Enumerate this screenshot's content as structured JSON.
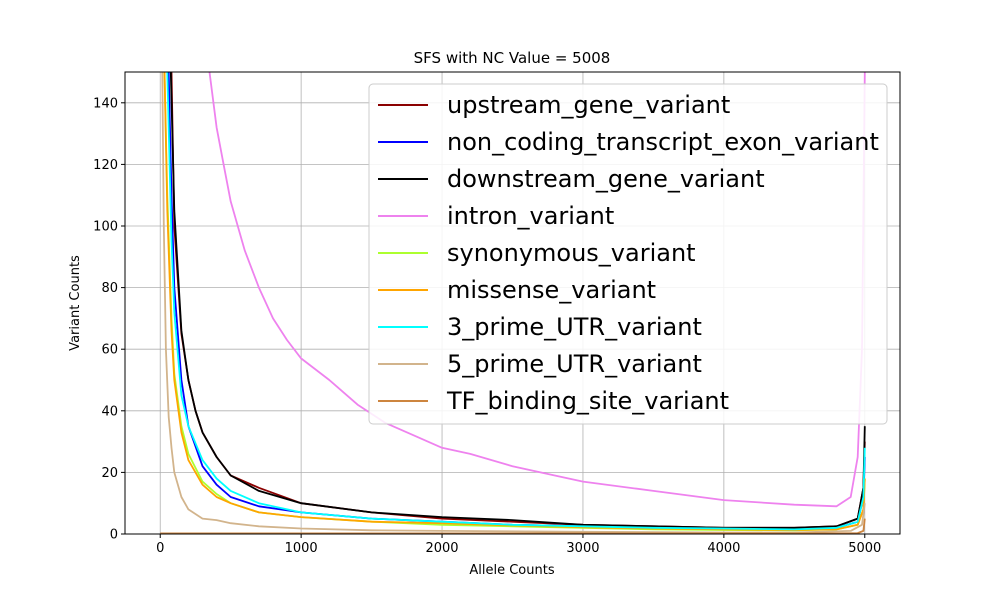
{
  "chart_data": {
    "type": "line",
    "title": "SFS with NC Value = 5008",
    "xlabel": "Allele Counts",
    "ylabel": "Variant Counts",
    "xlim": [
      -250,
      5250
    ],
    "ylim": [
      0,
      150
    ],
    "xticks": [
      0,
      1000,
      2000,
      3000,
      4000,
      5000
    ],
    "yticks": [
      0,
      20,
      40,
      60,
      80,
      100,
      120,
      140
    ],
    "grid": true,
    "legend_position": "top-right",
    "series": [
      {
        "name": "upstream_gene_variant",
        "color": "#8b0000",
        "x": [
          80,
          100,
          150,
          200,
          250,
          300,
          400,
          500,
          700,
          1000,
          1500,
          2000,
          2500,
          3000,
          3500,
          4000,
          4500,
          4800,
          4950,
          4990,
          5000
        ],
        "y": [
          150,
          100,
          65,
          50,
          40,
          33,
          25,
          19,
          15,
          10,
          7,
          5,
          4,
          3,
          2.5,
          2,
          2,
          2.5,
          5,
          15,
          30
        ]
      },
      {
        "name": "non_coding_transcript_exon_variant",
        "color": "#0000ff",
        "x": [
          60,
          80,
          100,
          150,
          200,
          300,
          400,
          500,
          700,
          1000,
          1500,
          2000,
          2500,
          3000,
          3500,
          4000,
          4500,
          4800,
          4950,
          4990,
          5000
        ],
        "y": [
          150,
          110,
          80,
          50,
          35,
          22,
          16,
          12,
          9,
          7,
          5,
          4,
          3,
          2.5,
          2,
          1.5,
          1.5,
          2,
          4,
          12,
          25
        ]
      },
      {
        "name": "downstream_gene_variant",
        "color": "#000000",
        "x": [
          75,
          100,
          150,
          200,
          250,
          300,
          400,
          500,
          700,
          1000,
          1500,
          2000,
          2500,
          3000,
          3500,
          4000,
          4500,
          4800,
          4950,
          4990,
          5000
        ],
        "y": [
          150,
          105,
          66,
          50,
          40,
          33,
          25,
          19,
          14,
          10,
          7,
          5.5,
          4.5,
          3,
          2.5,
          2,
          2,
          2.5,
          5,
          15,
          35
        ]
      },
      {
        "name": "intron_variant",
        "color": "#ee82ee",
        "x": [
          350,
          400,
          450,
          500,
          600,
          700,
          800,
          900,
          1000,
          1200,
          1400,
          1600,
          1800,
          2000,
          2200,
          2500,
          2800,
          3000,
          3500,
          4000,
          4500,
          4800,
          4900,
          4950,
          4980,
          5000
        ],
        "y": [
          150,
          132,
          120,
          108,
          92,
          80,
          70,
          63,
          57,
          50,
          42,
          36,
          32,
          28,
          26,
          22,
          19,
          17,
          14,
          11,
          9.5,
          9,
          12,
          25,
          60,
          150
        ]
      },
      {
        "name": "synonymous_variant",
        "color": "#adff2f",
        "x": [
          30,
          50,
          80,
          100,
          150,
          200,
          300,
          400,
          500,
          700,
          1000,
          1500,
          2000,
          2500,
          3000,
          3500,
          4000,
          4500,
          4800,
          4950,
          4990,
          5000
        ],
        "y": [
          150,
          110,
          70,
          52,
          35,
          26,
          17,
          13,
          10,
          7,
          5.5,
          4,
          3,
          2.5,
          2,
          1.5,
          1.3,
          1.2,
          1.5,
          3,
          8,
          18
        ]
      },
      {
        "name": "missense_variant",
        "color": "#ffa500",
        "x": [
          30,
          50,
          80,
          100,
          150,
          200,
          300,
          400,
          500,
          700,
          1000,
          1500,
          2000,
          2500,
          3000,
          3500,
          4000,
          4500,
          4800,
          4950,
          4990,
          5000
        ],
        "y": [
          150,
          105,
          66,
          50,
          33,
          24,
          16,
          12,
          10,
          7,
          5.5,
          4,
          3.5,
          2.8,
          2.2,
          1.8,
          1.5,
          1.3,
          1.5,
          3,
          8,
          18
        ]
      },
      {
        "name": "3_prime_UTR_variant",
        "color": "#00ffff",
        "x": [
          50,
          80,
          100,
          150,
          200,
          300,
          400,
          500,
          700,
          1000,
          1500,
          2000,
          2500,
          3000,
          3500,
          4000,
          4500,
          4800,
          4950,
          4990,
          5000
        ],
        "y": [
          150,
          95,
          72,
          45,
          35,
          24,
          18,
          14,
          10,
          7,
          5,
          4,
          3,
          2.5,
          2,
          1.8,
          1.5,
          2,
          4,
          12,
          28
        ]
      },
      {
        "name": "5_prime_UTR_variant",
        "color": "#d2b48c",
        "x": [
          15,
          25,
          40,
          60,
          80,
          100,
          150,
          200,
          300,
          400,
          500,
          700,
          1000,
          1500,
          2000,
          3000,
          4000,
          4500,
          4900,
          4980,
          5000
        ],
        "y": [
          150,
          100,
          60,
          38,
          28,
          20,
          12,
          8,
          5,
          4.5,
          3.5,
          2.5,
          1.8,
          1.2,
          1,
          0.7,
          0.5,
          0.5,
          1,
          3,
          10
        ]
      },
      {
        "name": "TF_binding_site_variant",
        "color": "#cd853f",
        "x": [
          0,
          500,
          1000,
          2000,
          3000,
          4000,
          4500,
          4950,
          4990,
          5000
        ],
        "y": [
          0.2,
          0.2,
          0.2,
          0.2,
          0.2,
          0.2,
          0.2,
          0.3,
          1,
          5
        ]
      }
    ]
  }
}
